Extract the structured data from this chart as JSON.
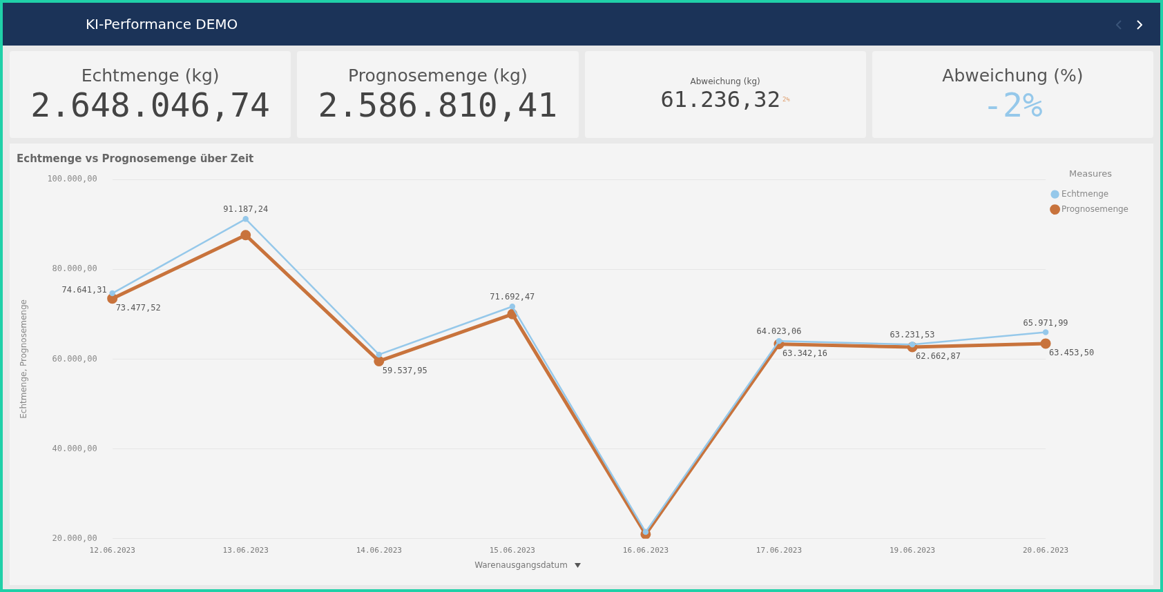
{
  "chart_data": [
    {
      "type": "other",
      "title": "KI-Performance DEMO"
    },
    {
      "type": "other",
      "title": "Echtmenge (kg)",
      "annotations": [
        "2.648.046,74"
      ]
    },
    {
      "type": "other",
      "title": "Prognosemenge (kg)",
      "annotations": [
        "2.586.810,41"
      ]
    },
    {
      "type": "other",
      "title": "Abweichung (kg)",
      "annotations": [
        "61.236,32",
        "2%"
      ]
    },
    {
      "type": "other",
      "title": "Abweichung (%)",
      "annotations": [
        "-2%"
      ]
    },
    {
      "type": "line",
      "title": "Echtmenge vs Prognosemenge über Zeit",
      "xlabel": "Warenausgangsdatum",
      "ylabel": "Echtmenge, Prognosemenge",
      "legend_title": "Measures",
      "categories": [
        "12.06.2023",
        "13.06.2023",
        "14.06.2023",
        "15.06.2023",
        "16.06.2023",
        "17.06.2023",
        "19.06.2023",
        "20.06.2023"
      ],
      "series": [
        {
          "name": "Echtmenge",
          "color": "#95c8ea",
          "values": [
            74641.31,
            91187.24,
            61000,
            71692.47,
            21500,
            64023.06,
            63231.53,
            65971.99
          ],
          "value_labels": [
            "74.641,31",
            "91.187,24",
            null,
            "71.692,47",
            null,
            "64.023,06",
            "63.231,53",
            "65.971,99"
          ]
        },
        {
          "name": "Prognosemenge",
          "color": "#c8733c",
          "values": [
            73477.52,
            87600,
            59537.95,
            70000,
            21000,
            63342.16,
            62662.87,
            63453.5
          ],
          "value_labels": [
            "73.477,52",
            null,
            "59.537,95",
            null,
            null,
            "63.342,16",
            "62.662,87",
            "63.453,50"
          ]
        }
      ],
      "ylim": [
        20000,
        100000
      ],
      "yticks": [
        {
          "value": 20000,
          "label": "20.000,00"
        },
        {
          "value": 40000,
          "label": "40.000,00"
        },
        {
          "value": 60000,
          "label": "60.000,00"
        },
        {
          "value": 80000,
          "label": "80.000,00"
        },
        {
          "value": 100000,
          "label": "100.000,00"
        }
      ],
      "grid": "y",
      "legend": "top right",
      "marker": "circle",
      "line_style": "solid"
    }
  ]
}
